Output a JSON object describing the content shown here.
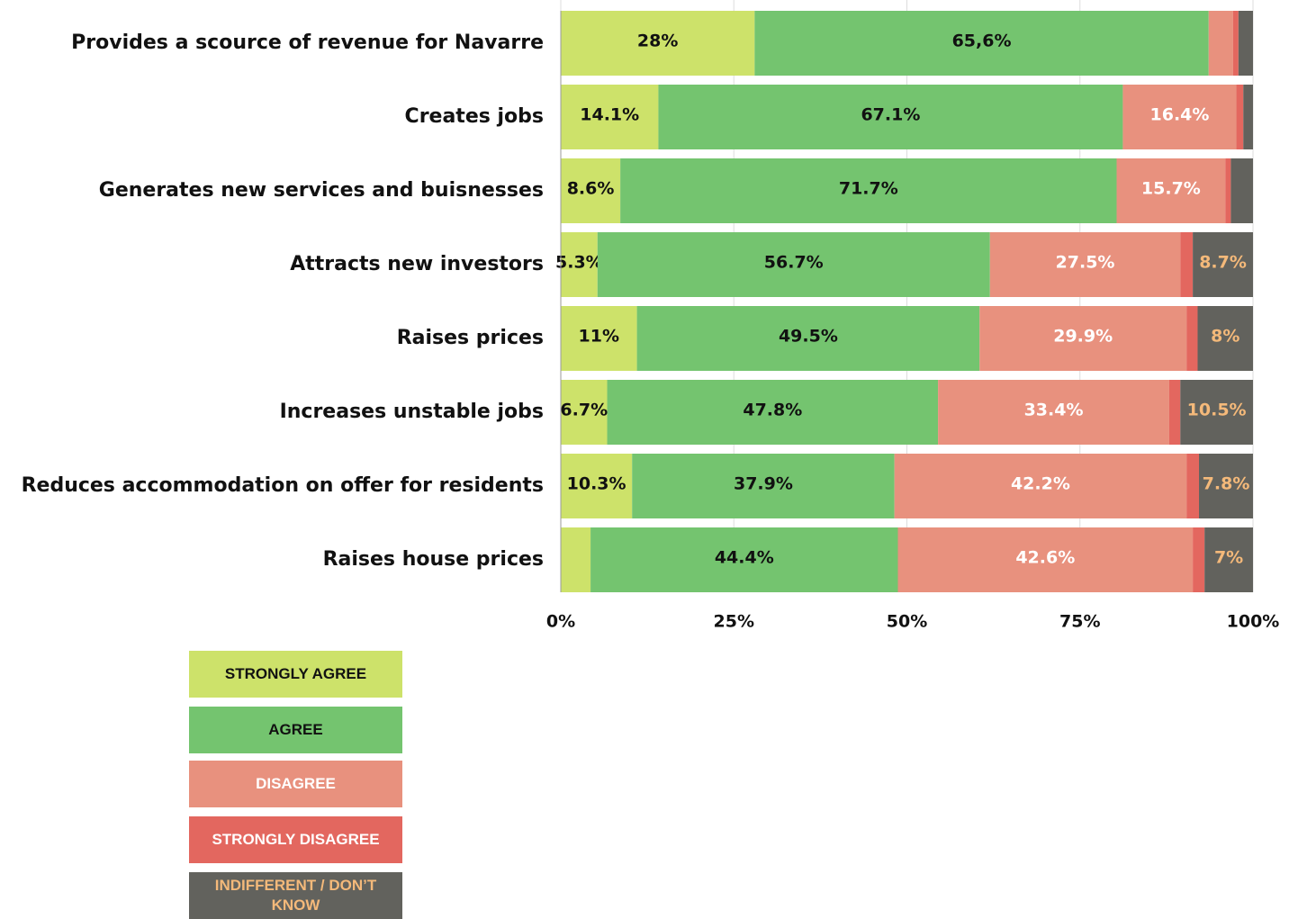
{
  "chart_data": {
    "type": "stacked-barh",
    "categories": [
      "Provides a scource of revenue for Navarre",
      "Creates jobs",
      "Generates new services and buisnesses",
      "Attracts new investors",
      "Raises prices",
      "Increases unstable jobs",
      "Reduces accommodation on offer for residents",
      "Raises house prices"
    ],
    "series": [
      {
        "name": "STRONGLY AGREE",
        "color": "#cde26a",
        "label_color": "#111111",
        "values": [
          28,
          14.1,
          8.6,
          5.3,
          11,
          6.7,
          10.3,
          4.3
        ],
        "value_labels": [
          "28%",
          "14.1%",
          "8.6%",
          "5.3%",
          "11%",
          "6.7%",
          "10.3%",
          null
        ]
      },
      {
        "name": "AGREE",
        "color": "#74c46f",
        "label_color": "#111111",
        "values": [
          65.6,
          67.1,
          71.7,
          56.7,
          49.5,
          47.8,
          37.9,
          44.4
        ],
        "value_labels": [
          "65,6%",
          "67.1%",
          "71.7%",
          "56.7%",
          "49.5%",
          "47.8%",
          "37.9%",
          "44.4%"
        ]
      },
      {
        "name": "DISAGREE",
        "color": "#e8917e",
        "label_color": "#ffffff",
        "values": [
          3.5,
          16.4,
          15.7,
          27.5,
          29.9,
          33.4,
          42.2,
          42.6
        ],
        "value_labels": [
          null,
          "16.4%",
          "15.7%",
          "27.5%",
          "29.9%",
          "33.4%",
          "42.2%",
          "42.6%"
        ]
      },
      {
        "name": "STRONGLY DISAGREE",
        "color": "#e3675f",
        "label_color": "#ffffff",
        "values": [
          0.8,
          1.0,
          0.8,
          1.8,
          1.6,
          1.6,
          1.8,
          1.7
        ],
        "value_labels": [
          null,
          null,
          null,
          null,
          null,
          null,
          null,
          null
        ]
      },
      {
        "name": "INDIFFERENT / DON’T KNOW",
        "color": "#62625d",
        "label_color": "#f4b97a",
        "values": [
          2.1,
          1.4,
          3.2,
          8.7,
          8,
          10.5,
          7.8,
          7
        ],
        "value_labels": [
          null,
          null,
          null,
          "8.7%",
          "8%",
          "10.5%",
          "7.8%",
          "7%"
        ]
      }
    ],
    "xlim": [
      0,
      100
    ],
    "xticks": [
      {
        "value": 0,
        "label": "0%"
      },
      {
        "value": 25,
        "label": "25%"
      },
      {
        "value": 50,
        "label": "50%"
      },
      {
        "value": 75,
        "label": "75%"
      },
      {
        "value": 100,
        "label": "100%"
      }
    ],
    "grid": true
  }
}
